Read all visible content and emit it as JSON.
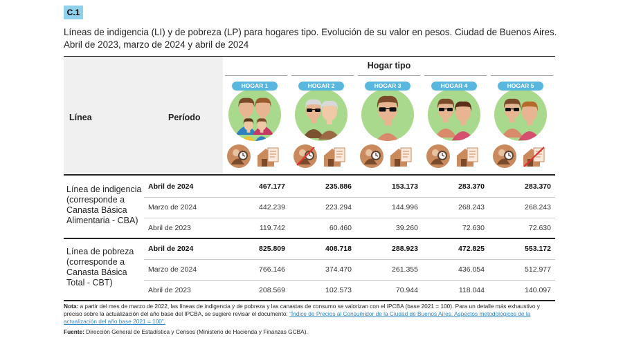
{
  "badge": "C.1",
  "title": "Líneas de indigencia (LI) y de pobreza (LP) para hogares tipo. Evolución de su valor en pesos. Ciudad de Buenos Aires. Abril de 2023, marzo de 2024 y abril de 2024",
  "headers": {
    "linea": "Línea",
    "periodo": "Período",
    "hogar_tipo": "Hogar tipo"
  },
  "hogares": [
    "HOGAR 1",
    "HOGAR 2",
    "HOGAR 3",
    "HOGAR 4",
    "HOGAR 5"
  ],
  "icon_names": [
    "owner-worker-icon",
    "rent-icon"
  ],
  "colors": {
    "badge": "#8fd0ea",
    "tag": "#59b6df",
    "portrait_bg": "#a9d98c",
    "link": "#2f86c2"
  },
  "groups": [
    {
      "label": "Línea de indigencia (corresponde a Canasta Básica Alimentaria - CBA)",
      "rows": [
        {
          "period": "Abril de 2024",
          "bold": true,
          "values": [
            "467.177",
            "235.886",
            "153.173",
            "283.370",
            "283.370"
          ]
        },
        {
          "period": "Marzo de 2024",
          "bold": false,
          "values": [
            "442.239",
            "223.294",
            "144.996",
            "268.243",
            "268.243"
          ]
        },
        {
          "period": "Abril de 2023",
          "bold": false,
          "values": [
            "119.742",
            "60.460",
            "39.260",
            "72.630",
            "72.630"
          ]
        }
      ]
    },
    {
      "label": "Línea de pobreza (corresponde a Canasta Básica Total - CBT)",
      "rows": [
        {
          "period": "Abril de 2024",
          "bold": true,
          "values": [
            "825.809",
            "408.718",
            "288.923",
            "472.825",
            "553.172"
          ]
        },
        {
          "period": "Marzo de 2024",
          "bold": false,
          "values": [
            "766.146",
            "374.470",
            "261.355",
            "436.054",
            "512.977"
          ]
        },
        {
          "period": "Abril de 2023",
          "bold": false,
          "values": [
            "208.569",
            "102.573",
            "70.944",
            "118.044",
            "140.097"
          ]
        }
      ]
    }
  ],
  "note": {
    "label": "Nota:",
    "text": "a partir del mes de marzo de 2022, las líneas de indigencia y de pobreza y las canastas de consumo se valorizan con el IPCBA (base 2021 = 100). Para un detalle más exhaustivo y preciso sobre la actualización del año base del IPCBA, se sugiere revisar el documento:",
    "link": "“Índice de Precios al Consumidor de la Ciudad de Buenos Aires. Aspectos metodológicos de la actualización del año base 2021 = 100”."
  },
  "source": {
    "label": "Fuente:",
    "text": "Dirección General de Estadística y Censos (Ministerio de Hacienda y Finanzas GCBA)."
  }
}
